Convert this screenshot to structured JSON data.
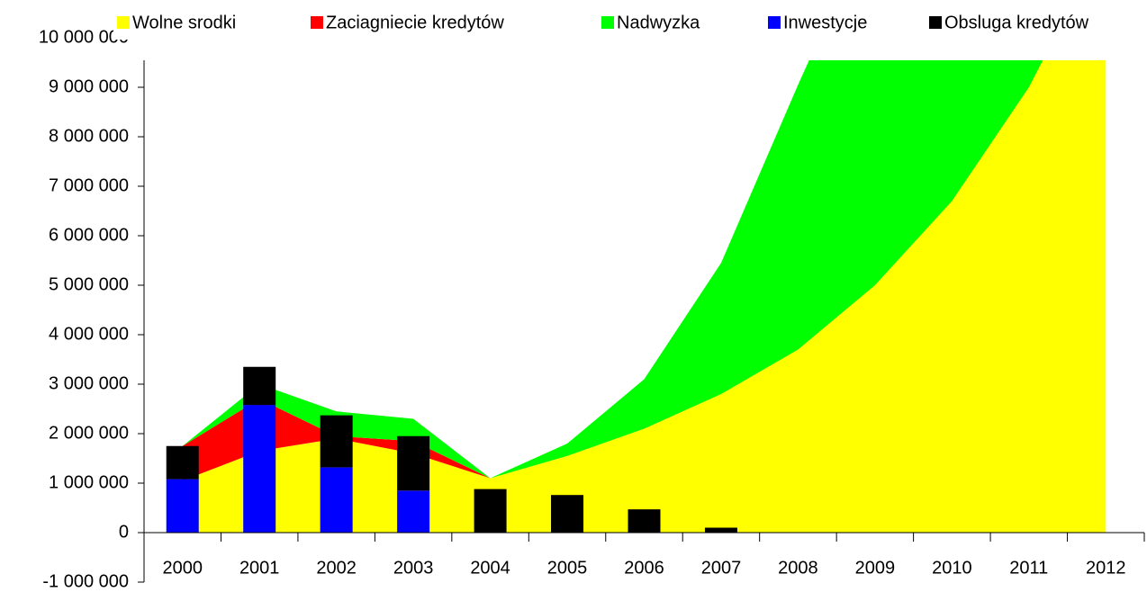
{
  "chart_data": {
    "type": "stacked-area-bar",
    "categories": [
      "2000",
      "2001",
      "2002",
      "2003",
      "2004",
      "2005",
      "2006",
      "2007",
      "2008",
      "2009",
      "2010",
      "2011",
      "2012"
    ],
    "areas": [
      {
        "name": "Wolne srodki",
        "color": "#ffff00",
        "values": [
          1050000,
          1650000,
          1900000,
          1600000,
          1100000,
          1550000,
          2100000,
          2800000,
          3700000,
          5000000,
          6700000,
          9000000,
          12000000
        ]
      },
      {
        "name": "Zaciagniecie kredytów",
        "color": "#ff0000",
        "values": [
          700000,
          1050000,
          50000,
          250000,
          0,
          0,
          0,
          0,
          0,
          0,
          0,
          0,
          0
        ]
      },
      {
        "name": "Nadwyzka",
        "color": "#00ff00",
        "values": [
          0,
          300000,
          500000,
          450000,
          0,
          250000,
          1000000,
          2650000,
          5350000,
          7500000,
          8000000,
          7000000,
          5000000
        ]
      }
    ],
    "bars": [
      {
        "name": "Inwestycje",
        "color": "#0000ff",
        "values": [
          1080000,
          2580000,
          1320000,
          850000,
          0,
          0,
          0,
          0,
          0,
          0,
          0,
          0,
          0
        ]
      },
      {
        "name": "Obsluga kredytów",
        "color": "#000000",
        "values": [
          670000,
          770000,
          1050000,
          1100000,
          880000,
          760000,
          470000,
          100000,
          0,
          0,
          0,
          0,
          0
        ]
      }
    ],
    "ylim": [
      -1000000,
      10000000
    ],
    "yticks": [
      {
        "value": -1000000,
        "label": "-1 000 000"
      },
      0,
      {
        "value": 1000000,
        "label": "1 000 000"
      },
      {
        "value": 2000000,
        "label": "2 000 000"
      },
      {
        "value": 3000000,
        "label": "3 000 000"
      },
      {
        "value": 4000000,
        "label": "4 000 000"
      },
      {
        "value": 5000000,
        "label": "5 000 000"
      },
      {
        "value": 6000000,
        "label": "6 000 000"
      },
      {
        "value": 7000000,
        "label": "7 000 000"
      },
      {
        "value": 8000000,
        "label": "8 000 000"
      },
      {
        "value": 9000000,
        "label": "9 000 000"
      },
      {
        "value": 10000000,
        "label": "10 000 000"
      }
    ]
  }
}
